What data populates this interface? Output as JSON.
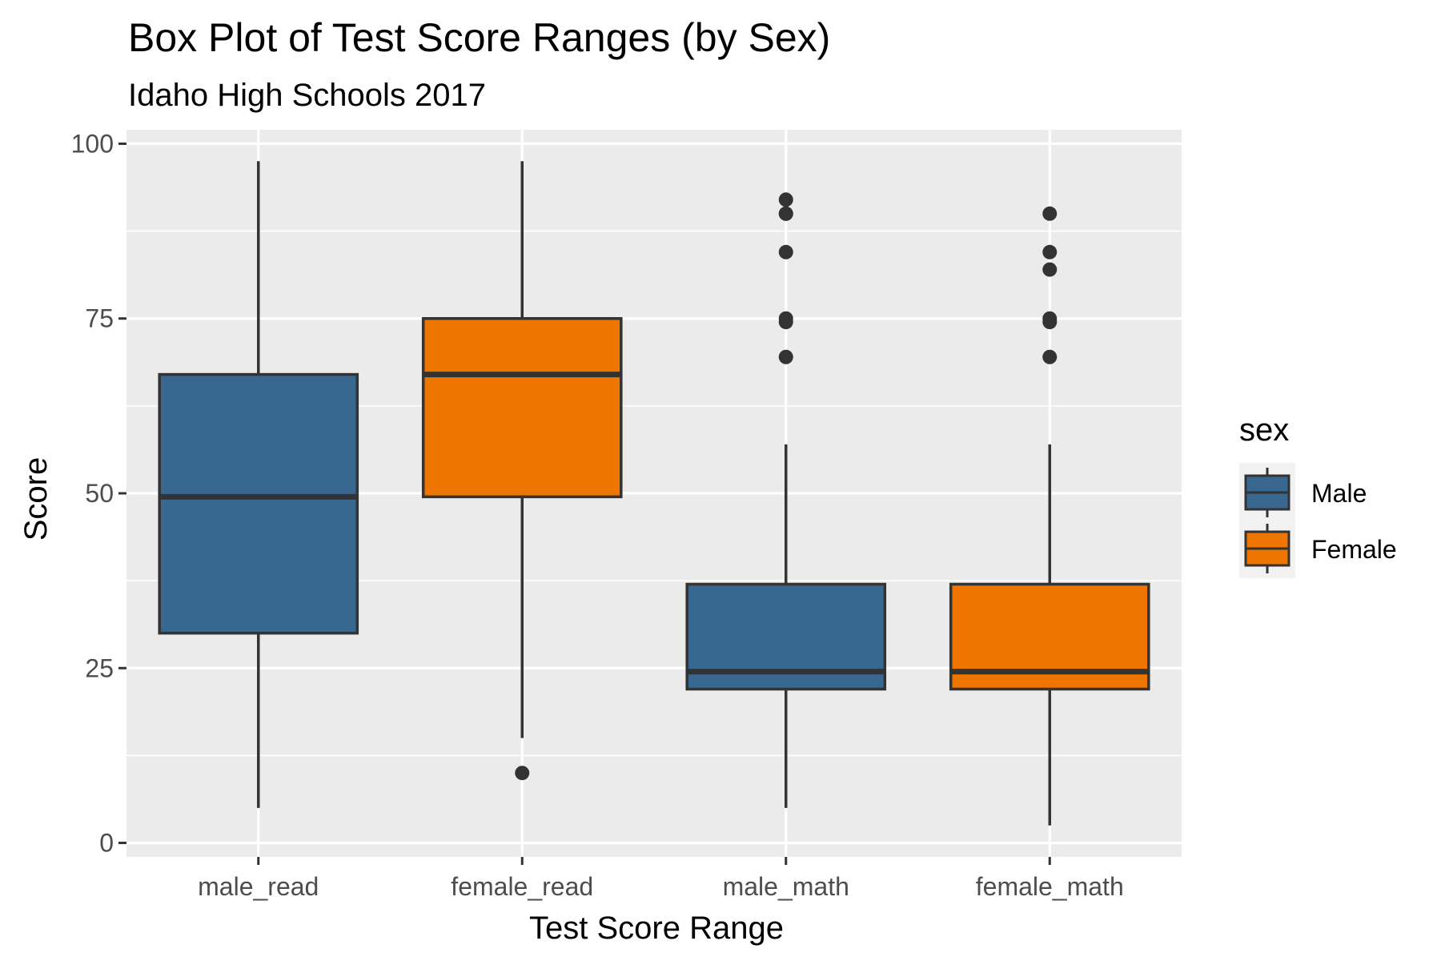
{
  "chart_data": {
    "type": "boxplot",
    "title": "Box Plot of Test Score Ranges (by Sex)",
    "subtitle": "Idaho High Schools 2017",
    "xlabel": "Test Score Range",
    "ylabel": "Score",
    "ylim": [
      -2,
      102
    ],
    "y_ticks": [
      0,
      25,
      50,
      75,
      100
    ],
    "grid": true,
    "legend_position": "right",
    "legend": {
      "title": "sex",
      "entries": [
        {
          "label": "Male",
          "color": "#386890"
        },
        {
          "label": "Female",
          "color": "#EE7600"
        }
      ]
    },
    "categories": [
      "male_read",
      "female_read",
      "male_math",
      "female_math"
    ],
    "boxes": [
      {
        "category": "male_read",
        "group": "Male",
        "min": 5,
        "q1": 30,
        "median": 49.5,
        "q3": 67,
        "max": 97.5,
        "outliers": []
      },
      {
        "category": "female_read",
        "group": "Female",
        "min": 15,
        "q1": 49.5,
        "median": 67,
        "q3": 75,
        "max": 97.5,
        "outliers": [
          10
        ]
      },
      {
        "category": "male_math",
        "group": "Male",
        "min": 5,
        "q1": 22,
        "median": 24.5,
        "q3": 37,
        "max": 57,
        "outliers": [
          69.5,
          74.5,
          75,
          84.5,
          90,
          90,
          92
        ]
      },
      {
        "category": "female_math",
        "group": "Female",
        "min": 2.5,
        "q1": 22,
        "median": 24.5,
        "q3": 37,
        "max": 57,
        "outliers": [
          69.5,
          74.5,
          75,
          82,
          84.5,
          90
        ]
      }
    ]
  }
}
